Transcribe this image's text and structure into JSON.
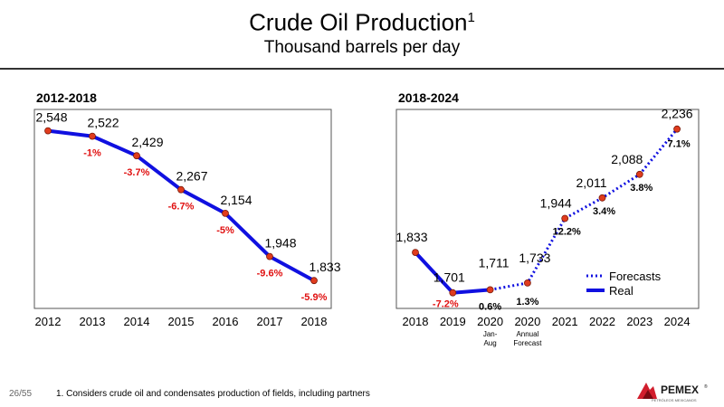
{
  "header": {
    "title": "Crude Oil Production",
    "title_sup": "1",
    "subtitle": "Thousand barrels per day"
  },
  "footer": {
    "page": "26/55",
    "footnote": "1.    Considers crude oil and condensates production of fields, including partners"
  },
  "logo": {
    "name": "PEMEX",
    "tagline": "PETRÓLEOS MEXICANOS"
  },
  "colors": {
    "line": "#1010e0",
    "marker": "#e03c1e",
    "negative": "#e01010"
  },
  "chart_data": [
    {
      "type": "line",
      "title": "2012-2018",
      "categories": [
        "2012",
        "2013",
        "2014",
        "2015",
        "2016",
        "2017",
        "2018"
      ],
      "values": [
        2548,
        2522,
        2429,
        2267,
        2154,
        1948,
        1833
      ],
      "value_labels": [
        "2,548",
        "2,522",
        "2,429",
        "2,267",
        "2,154",
        "1,948",
        "1,833"
      ],
      "change_labels": [
        "",
        "-1%",
        "-3.7%",
        "-6.7%",
        "-5%",
        "-9.6%",
        "-5.9%"
      ],
      "ylim": [
        1700,
        2650
      ],
      "grid": false
    },
    {
      "type": "line",
      "title": "2018-2024",
      "categories": [
        "2018",
        "2019",
        "2020",
        "2020",
        "2021",
        "2022",
        "2023",
        "2024"
      ],
      "category_notes": [
        "",
        "",
        "Jan-\nAug",
        "Annual\nForecast",
        "",
        "",
        "",
        ""
      ],
      "values": [
        1833,
        1701,
        1711,
        1733,
        1944,
        2011,
        2088,
        2236
      ],
      "value_labels": [
        "1,833",
        "1,701",
        "1,711",
        "1,733",
        "1,944",
        "2,011",
        "2,088",
        "2,236"
      ],
      "change_labels": [
        "",
        "-7.2%",
        "0.6%",
        "1.3%",
        "12.2%",
        "3.4%",
        "3.8%",
        "7.1%"
      ],
      "series": [
        {
          "name": "Real",
          "style": "solid",
          "from_index": 0,
          "to_index": 2
        },
        {
          "name": "Forecasts",
          "style": "dotted",
          "from_index": 2,
          "to_index": 7
        }
      ],
      "legend": "right",
      "ylim": [
        1650,
        2300
      ],
      "grid": false
    }
  ]
}
